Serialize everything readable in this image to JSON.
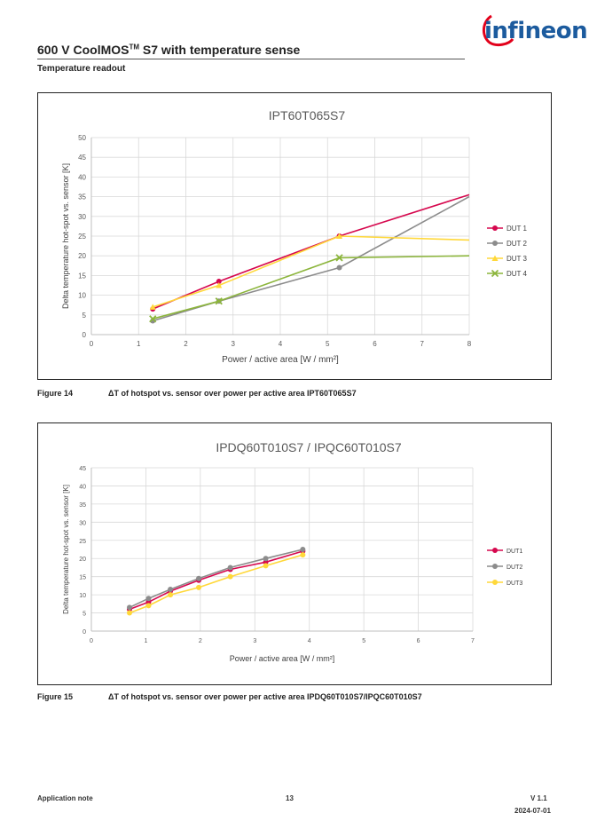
{
  "header": {
    "logo_text": "infineon",
    "doc_title_main": "600 V CoolMOS",
    "doc_title_tm": "TM",
    "doc_title_rest": " S7 with temperature sense",
    "section": "Temperature readout",
    "brand_color": "#1c5b9e"
  },
  "chart_data": [
    {
      "type": "line",
      "title": "IPT60T065S7",
      "xlabel": "Power / active area [W / mm²]",
      "ylabel": "Delta temperature hot-spot vs. sensor [K]",
      "xlim": [
        0,
        8
      ],
      "ylim": [
        0,
        50
      ],
      "xticks": [
        "0",
        "1",
        "2",
        "3",
        "4",
        "5",
        "6",
        "7",
        "8"
      ],
      "yticks": [
        "0",
        "5",
        "10",
        "15",
        "20",
        "25",
        "30",
        "35",
        "40",
        "45",
        "50"
      ],
      "grid": true,
      "legend": "right",
      "series": [
        {
          "name": "DUT 1",
          "color": "#d6084e",
          "marker": "circle",
          "x": [
            1.3,
            2.7,
            5.25,
            8.0
          ],
          "y": [
            6.5,
            13.5,
            25.0,
            35.5
          ],
          "marked": [
            true,
            true,
            true,
            false
          ]
        },
        {
          "name": "DUT 2",
          "color": "#8c8c8c",
          "marker": "circle",
          "x": [
            1.3,
            2.7,
            5.25,
            8.0
          ],
          "y": [
            3.5,
            8.5,
            17.0,
            35.0
          ],
          "marked": [
            true,
            true,
            true,
            false
          ]
        },
        {
          "name": "DUT 3",
          "color": "#ffd83a",
          "marker": "triangle",
          "x": [
            1.3,
            2.7,
            5.25,
            8.0
          ],
          "y": [
            7.0,
            12.5,
            25.0,
            24.0
          ],
          "marked": [
            true,
            true,
            true,
            false
          ]
        },
        {
          "name": "DUT 4",
          "color": "#8cb53c",
          "marker": "x",
          "x": [
            1.3,
            2.7,
            5.25,
            8.0
          ],
          "y": [
            4.0,
            8.5,
            19.5,
            20.0
          ],
          "marked": [
            true,
            true,
            true,
            false
          ]
        }
      ]
    },
    {
      "type": "line",
      "title": "IPDQ60T010S7 / IPQC60T010S7",
      "xlabel": "Power / active area [W / mm²]",
      "ylabel": "Delta temperature hot-spot vs. sensor [K]",
      "xlim": [
        0,
        7
      ],
      "ylim": [
        0,
        45
      ],
      "xticks": [
        "0",
        "1",
        "2",
        "3",
        "4",
        "5",
        "6",
        "7"
      ],
      "yticks": [
        "0",
        "5",
        "10",
        "15",
        "20",
        "25",
        "30",
        "35",
        "40",
        "45"
      ],
      "grid": true,
      "legend": "right",
      "series": [
        {
          "name": "DUT1",
          "color": "#d6084e",
          "marker": "circle",
          "x": [
            0.7,
            1.05,
            1.45,
            1.97,
            2.55,
            3.2,
            3.88
          ],
          "y": [
            6.0,
            8.0,
            11.0,
            14.0,
            17.0,
            19.0,
            22.0
          ],
          "marked": [
            true,
            true,
            true,
            true,
            true,
            true,
            true
          ]
        },
        {
          "name": "DUT2",
          "color": "#8c8c8c",
          "marker": "circle",
          "x": [
            0.7,
            1.05,
            1.45,
            1.97,
            2.55,
            3.2,
            3.88
          ],
          "y": [
            6.5,
            9.0,
            11.5,
            14.5,
            17.5,
            20.0,
            22.5
          ],
          "marked": [
            true,
            true,
            true,
            true,
            true,
            true,
            true
          ]
        },
        {
          "name": "DUT3",
          "color": "#ffd83a",
          "marker": "circle",
          "x": [
            0.7,
            1.05,
            1.45,
            1.97,
            2.55,
            3.2,
            3.88
          ],
          "y": [
            5.0,
            7.0,
            10.0,
            12.0,
            15.0,
            18.0,
            21.0
          ],
          "marked": [
            true,
            true,
            true,
            true,
            true,
            true,
            true
          ]
        }
      ]
    }
  ],
  "captions": [
    {
      "num": "Figure 14",
      "text": "ΔT of hotspot vs. sensor over power per active area IPT60T065S7"
    },
    {
      "num": "Figure 15",
      "text": "ΔT of hotspot vs. sensor over power per active area IPDQ60T010S7/IPQC60T010S7"
    }
  ],
  "footer": {
    "left": "Application note",
    "page": "13",
    "version": "V 1.1",
    "date": "2024-07-01"
  }
}
